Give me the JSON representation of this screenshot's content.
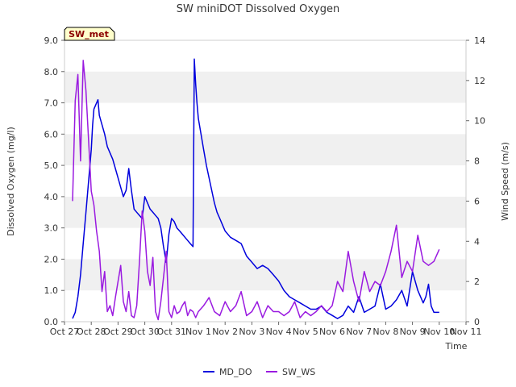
{
  "chart_data": {
    "type": "line",
    "title": "SW miniDOT Dissolved Oxygen",
    "xlabel": "Time",
    "ylabel_left": "Dissolved Oxygen (mg/l)",
    "ylabel_right": "Wind Speed (m/s)",
    "x_tick_labels": [
      "Oct 27",
      "Oct 28",
      "Oct 29",
      "Oct 30",
      "Oct 31",
      "Nov 1",
      "Nov 2",
      "Nov 3",
      "Nov 4",
      "Nov 5",
      "Nov 6",
      "Nov 7",
      "Nov 8",
      "Nov 9",
      "Nov 10",
      "Nov 11"
    ],
    "xlim_days": [
      0,
      15
    ],
    "ylim_left": [
      0,
      9
    ],
    "ylim_right": [
      0,
      14
    ],
    "y_left_ticks": [
      "0.0",
      "1.0",
      "2.0",
      "3.0",
      "4.0",
      "5.0",
      "6.0",
      "7.0",
      "8.0",
      "9.0"
    ],
    "y_right_ticks": [
      "0",
      "2",
      "4",
      "6",
      "8",
      "10",
      "12",
      "14"
    ],
    "grid": "horizontal bands",
    "legend_position": "bottom",
    "site_badge": "SW_met",
    "series": [
      {
        "name": "MD_DO",
        "axis": "left",
        "color": "#0000dd",
        "x": [
          0.3,
          0.4,
          0.5,
          0.6,
          0.7,
          0.8,
          0.9,
          1.0,
          1.05,
          1.1,
          1.2,
          1.25,
          1.3,
          1.4,
          1.5,
          1.6,
          1.7,
          1.8,
          1.9,
          2.0,
          2.1,
          2.2,
          2.3,
          2.4,
          2.5,
          2.6,
          2.7,
          2.8,
          2.9,
          3.0,
          3.1,
          3.2,
          3.3,
          3.4,
          3.5,
          3.6,
          3.7,
          3.8,
          3.9,
          4.0,
          4.1,
          4.2,
          4.3,
          4.4,
          4.5,
          4.6,
          4.7,
          4.8,
          4.85,
          4.9,
          4.95,
          5.0,
          5.1,
          5.2,
          5.3,
          5.4,
          5.5,
          5.6,
          5.7,
          5.8,
          5.9,
          6.0,
          6.2,
          6.4,
          6.6,
          6.8,
          7.0,
          7.2,
          7.4,
          7.6,
          7.8,
          8.0,
          8.2,
          8.4,
          8.6,
          8.8,
          9.0,
          9.2,
          9.4,
          9.6,
          9.8,
          10.0,
          10.2,
          10.4,
          10.6,
          10.8,
          11.0,
          11.2,
          11.4,
          11.6,
          11.8,
          12.0,
          12.2,
          12.4,
          12.6,
          12.8,
          13.0,
          13.2,
          13.4,
          13.5,
          13.6,
          13.7,
          13.8,
          13.9,
          14.0
        ],
        "y": [
          0.1,
          0.3,
          0.8,
          1.5,
          2.5,
          3.5,
          4.5,
          5.5,
          6.3,
          6.8,
          7.0,
          7.1,
          6.6,
          6.3,
          6.0,
          5.6,
          5.4,
          5.2,
          4.9,
          4.6,
          4.3,
          4.0,
          4.2,
          4.9,
          4.2,
          3.6,
          3.5,
          3.4,
          3.3,
          4.0,
          3.8,
          3.6,
          3.5,
          3.4,
          3.3,
          3.0,
          2.4,
          1.9,
          2.8,
          3.3,
          3.2,
          3.0,
          2.9,
          2.8,
          2.7,
          2.6,
          2.5,
          2.4,
          8.4,
          7.6,
          7.0,
          6.5,
          6.0,
          5.5,
          5.0,
          4.6,
          4.2,
          3.8,
          3.5,
          3.3,
          3.1,
          2.9,
          2.7,
          2.6,
          2.5,
          2.1,
          1.9,
          1.7,
          1.8,
          1.7,
          1.5,
          1.3,
          1.0,
          0.8,
          0.7,
          0.6,
          0.5,
          0.4,
          0.4,
          0.5,
          0.3,
          0.2,
          0.1,
          0.2,
          0.5,
          0.3,
          0.8,
          0.3,
          0.4,
          0.5,
          1.2,
          0.4,
          0.5,
          0.7,
          1.0,
          0.5,
          1.6,
          1.0,
          0.6,
          0.8,
          1.2,
          0.5,
          0.3,
          0.3,
          0.3
        ]
      },
      {
        "name": "SW_WS",
        "axis": "right",
        "color": "#9a1ae0",
        "x": [
          0.3,
          0.4,
          0.5,
          0.6,
          0.7,
          0.8,
          0.9,
          1.0,
          1.1,
          1.2,
          1.3,
          1.4,
          1.5,
          1.6,
          1.7,
          1.8,
          1.9,
          2.0,
          2.1,
          2.2,
          2.3,
          2.4,
          2.5,
          2.6,
          2.7,
          2.8,
          2.9,
          3.0,
          3.1,
          3.2,
          3.3,
          3.4,
          3.5,
          3.6,
          3.7,
          3.8,
          3.9,
          4.0,
          4.1,
          4.2,
          4.3,
          4.4,
          4.5,
          4.6,
          4.7,
          4.8,
          4.9,
          5.0,
          5.2,
          5.4,
          5.6,
          5.8,
          6.0,
          6.2,
          6.4,
          6.6,
          6.8,
          7.0,
          7.2,
          7.4,
          7.6,
          7.8,
          8.0,
          8.2,
          8.4,
          8.6,
          8.8,
          9.0,
          9.2,
          9.4,
          9.6,
          9.8,
          10.0,
          10.2,
          10.4,
          10.6,
          10.8,
          11.0,
          11.2,
          11.4,
          11.6,
          11.8,
          12.0,
          12.2,
          12.4,
          12.6,
          12.8,
          13.0,
          13.2,
          13.4,
          13.6,
          13.8,
          14.0
        ],
        "y": [
          6.0,
          11.0,
          12.3,
          8.0,
          13.0,
          11.5,
          9.0,
          6.5,
          5.8,
          4.5,
          3.5,
          1.5,
          2.5,
          0.5,
          0.8,
          0.3,
          1.2,
          2.0,
          2.8,
          1.0,
          0.5,
          1.5,
          0.3,
          0.2,
          0.8,
          3.0,
          5.5,
          4.5,
          2.5,
          1.8,
          3.2,
          0.5,
          0.1,
          1.0,
          2.2,
          3.5,
          0.5,
          0.2,
          0.8,
          0.4,
          0.5,
          0.8,
          1.0,
          0.3,
          0.6,
          0.5,
          0.2,
          0.5,
          0.8,
          1.2,
          0.5,
          0.3,
          1.0,
          0.5,
          0.8,
          1.5,
          0.3,
          0.5,
          1.0,
          0.2,
          0.8,
          0.5,
          0.5,
          0.3,
          0.5,
          1.0,
          0.2,
          0.5,
          0.3,
          0.5,
          0.8,
          0.5,
          0.8,
          2.0,
          1.5,
          3.5,
          2.0,
          1.0,
          2.5,
          1.5,
          2.0,
          1.8,
          2.5,
          3.5,
          4.8,
          2.2,
          3.0,
          2.5,
          4.3,
          3.0,
          2.8,
          3.0,
          3.6
        ]
      }
    ]
  }
}
